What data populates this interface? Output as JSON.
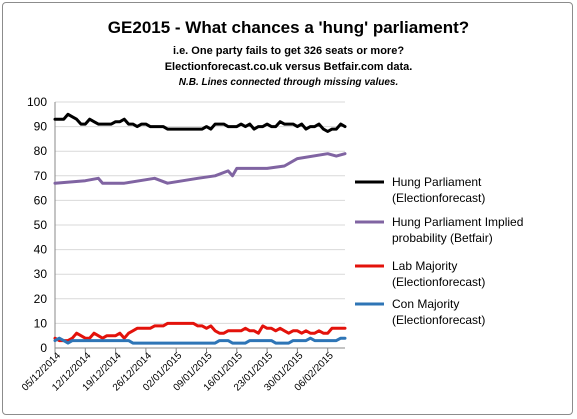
{
  "chart_data": {
    "type": "line",
    "title": "GE2015 - What chances a 'hung' parliament?",
    "subtitles": [
      "i.e. One party fails  to get 326 seats or more?",
      "Electionforecast.co.uk  versus Betfair.com data.",
      "N.B. Lines connected through missing values."
    ],
    "xlabel": "",
    "ylabel": "",
    "ylim": [
      0,
      100
    ],
    "y_ticks": [
      "0",
      "10",
      "20",
      "30",
      "40",
      "50",
      "60",
      "70",
      "80",
      "90",
      "100"
    ],
    "x_tick_labels": [
      "05/12/2014",
      "12/12/2014",
      "19/12/2014",
      "26/12/2014",
      "02/01/2015",
      "09/01/2015",
      "16/01/2015",
      "23/01/2015",
      "30/01/2015",
      "06/02/2015"
    ],
    "x": [
      "05/12/2014",
      "06/12/2014",
      "07/12/2014",
      "08/12/2014",
      "09/12/2014",
      "10/12/2014",
      "11/12/2014",
      "12/12/2014",
      "13/12/2014",
      "14/12/2014",
      "15/12/2014",
      "16/12/2014",
      "17/12/2014",
      "18/12/2014",
      "19/12/2014",
      "20/12/2014",
      "21/12/2014",
      "22/12/2014",
      "23/12/2014",
      "24/12/2014",
      "25/12/2014",
      "26/12/2014",
      "27/12/2014",
      "28/12/2014",
      "29/12/2014",
      "30/12/2014",
      "31/12/2014",
      "01/01/2015",
      "02/01/2015",
      "03/01/2015",
      "04/01/2015",
      "05/01/2015",
      "06/01/2015",
      "07/01/2015",
      "08/01/2015",
      "09/01/2015",
      "10/01/2015",
      "11/01/2015",
      "12/01/2015",
      "13/01/2015",
      "14/01/2015",
      "15/01/2015",
      "16/01/2015",
      "17/01/2015",
      "18/01/2015",
      "19/01/2015",
      "20/01/2015",
      "21/01/2015",
      "22/01/2015",
      "23/01/2015",
      "24/01/2015",
      "25/01/2015",
      "26/01/2015",
      "27/01/2015",
      "28/01/2015",
      "29/01/2015",
      "30/01/2015",
      "31/01/2015",
      "01/02/2015",
      "02/02/2015",
      "03/02/2015",
      "04/02/2015",
      "05/02/2015",
      "06/02/2015",
      "07/02/2015",
      "08/02/2015",
      "09/02/2015",
      "10/02/2015"
    ],
    "series": [
      {
        "name": "Hung Parliament (Electionforecast)",
        "legend_lines": [
          "Hung Parliament",
          "(Electionforecast)"
        ],
        "color": "#000000",
        "values": [
          93,
          93,
          93,
          95,
          94,
          93,
          91,
          91,
          93,
          92,
          91,
          91,
          91,
          91,
          92,
          92,
          93,
          91,
          91,
          90,
          91,
          91,
          90,
          90,
          90,
          90,
          89,
          89,
          89,
          89,
          89,
          89,
          89,
          89,
          89,
          90,
          89,
          91,
          91,
          91,
          90,
          90,
          90,
          91,
          90,
          91,
          89,
          90,
          90,
          91,
          90,
          90,
          92,
          91,
          91,
          91,
          90,
          91,
          89,
          90,
          90,
          91,
          89,
          88,
          89,
          89,
          91,
          90
        ]
      },
      {
        "name": "Hung Parliament Implied probability (Betfair)",
        "legend_lines": [
          "Hung Parliament Implied",
          "probability (Betfair)"
        ],
        "color": "#8064a2",
        "values": [
          67,
          null,
          null,
          null,
          null,
          null,
          null,
          68,
          null,
          null,
          69,
          67,
          null,
          null,
          null,
          null,
          67,
          null,
          null,
          null,
          null,
          null,
          null,
          69,
          null,
          null,
          67,
          null,
          null,
          null,
          null,
          null,
          null,
          69,
          null,
          null,
          null,
          70,
          null,
          null,
          72,
          70,
          73,
          null,
          null,
          null,
          null,
          null,
          null,
          73,
          null,
          null,
          null,
          74,
          null,
          null,
          77,
          null,
          null,
          null,
          null,
          null,
          null,
          79,
          null,
          78,
          null,
          79
        ]
      },
      {
        "name": "Lab Majority (Electionforecast)",
        "legend_lines": [
          "Lab Majority",
          "(Electionforecast)"
        ],
        "color": "#e3120b",
        "values": [
          4,
          3,
          3,
          3,
          4,
          6,
          5,
          4,
          4,
          6,
          5,
          4,
          5,
          5,
          5,
          6,
          4,
          6,
          7,
          8,
          8,
          8,
          8,
          9,
          9,
          9,
          10,
          10,
          10,
          10,
          10,
          10,
          10,
          9,
          9,
          8,
          9,
          7,
          6,
          6,
          7,
          7,
          7,
          7,
          8,
          7,
          7,
          6,
          9,
          8,
          8,
          7,
          8,
          7,
          6,
          7,
          7,
          6,
          7,
          6,
          6,
          7,
          6,
          6,
          8,
          8,
          8,
          8
        ]
      },
      {
        "name": "Con Majority (Electionforecast)",
        "legend_lines": [
          "Con Majority",
          "(Electionforecast)"
        ],
        "color": "#2e75b6",
        "values": [
          3,
          4,
          3,
          2,
          3,
          3,
          3,
          3,
          3,
          3,
          3,
          3,
          3,
          3,
          3,
          3,
          3,
          3,
          2,
          2,
          2,
          2,
          2,
          2,
          2,
          2,
          2,
          2,
          2,
          2,
          2,
          2,
          2,
          2,
          2,
          2,
          2,
          2,
          3,
          3,
          3,
          2,
          2,
          2,
          2,
          3,
          3,
          3,
          3,
          3,
          3,
          2,
          2,
          2,
          2,
          3,
          3,
          3,
          3,
          4,
          3,
          3,
          3,
          3,
          3,
          3,
          4,
          4
        ]
      }
    ],
    "legend_position": "right",
    "grid": {
      "horizontal": true,
      "vertical": false
    }
  }
}
